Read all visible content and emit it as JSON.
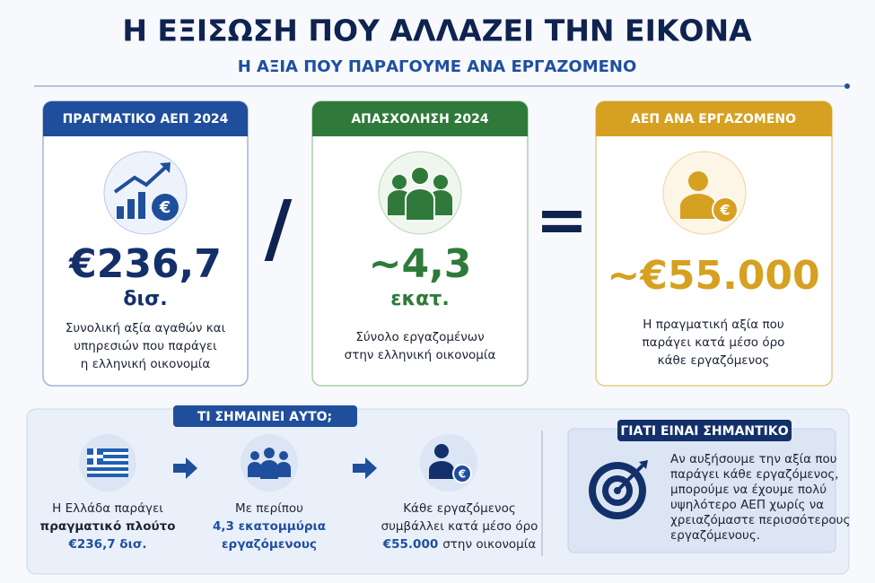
{
  "header": {
    "title": "Η ΕΞΙΣΩΣΗ ΠΟΥ ΑΛΛΑΖΕΙ ΤΗΝ ΕΙΚΟΝΑ",
    "subtitle": "Η ΑΞΙΑ ΠΟΥ ΠΑΡΑΓΟΥΜΕ ΑΝΑ ΕΡΓΑΖΟΜΕΝΟ"
  },
  "cards": [
    {
      "label": "ΠΡΑΓΜΑΤΙΚΟ ΑΕΠ 2024",
      "value": "€236,7",
      "unit": "δισ.",
      "lines": [
        "Συνολική αξία αγαθών και",
        "υπηρεσιών που παράγει",
        "η ελληνική οικονομία"
      ]
    },
    {
      "label": "ΑΠΑΣΧΟΛΗΣΗ 2024",
      "value": "~4,3",
      "unit": "εκατ.",
      "lines": [
        "Σύνολο εργαζομένων",
        "στην ελληνική οικονομία"
      ]
    },
    {
      "label": "ΑΕΠ ΑΝΑ ΕΡΓΑΖΟΜΕΝΟ",
      "value": "~€55.000",
      "lines": [
        "Η πραγματική αξία που",
        "παράγει κατά μέσο όρο",
        "κάθε εργαζόμενος"
      ]
    }
  ],
  "operators": {
    "divide": "/",
    "equals": "="
  },
  "meaning": {
    "title": "ΤΙ ΣΗΜΑΙΝΕΙ ΑΥΤΟ;",
    "items": [
      {
        "lines": [
          "Η Ελλάδα παράγει",
          "πραγματικό πλούτο",
          "€236,7 δισ."
        ]
      },
      {
        "lines": [
          "Με περίπου",
          "4,3 εκατομμύρια",
          "εργαζόμενους"
        ]
      },
      {
        "lines": [
          "Κάθε εργαζόμενος",
          "συμβάλλει κατά μέσο όρο"
        ],
        "highlight": "€55.000",
        "tail": "στην οικονομία"
      }
    ]
  },
  "importance": {
    "title": "ΓΙΑΤΙ ΕΙΝΑΙ ΣΗΜΑΝΤΙΚΟ",
    "lines": [
      "Αν αυξήσουμε την αξία που",
      "παράγει κάθε εργαζόμενος,",
      "μπορούμε να έχουμε πολύ",
      "υψηλότερο ΑΕΠ χωρίς να",
      "χρειαζόμαστε περισσότερους",
      "εργαζόμενους."
    ]
  }
}
